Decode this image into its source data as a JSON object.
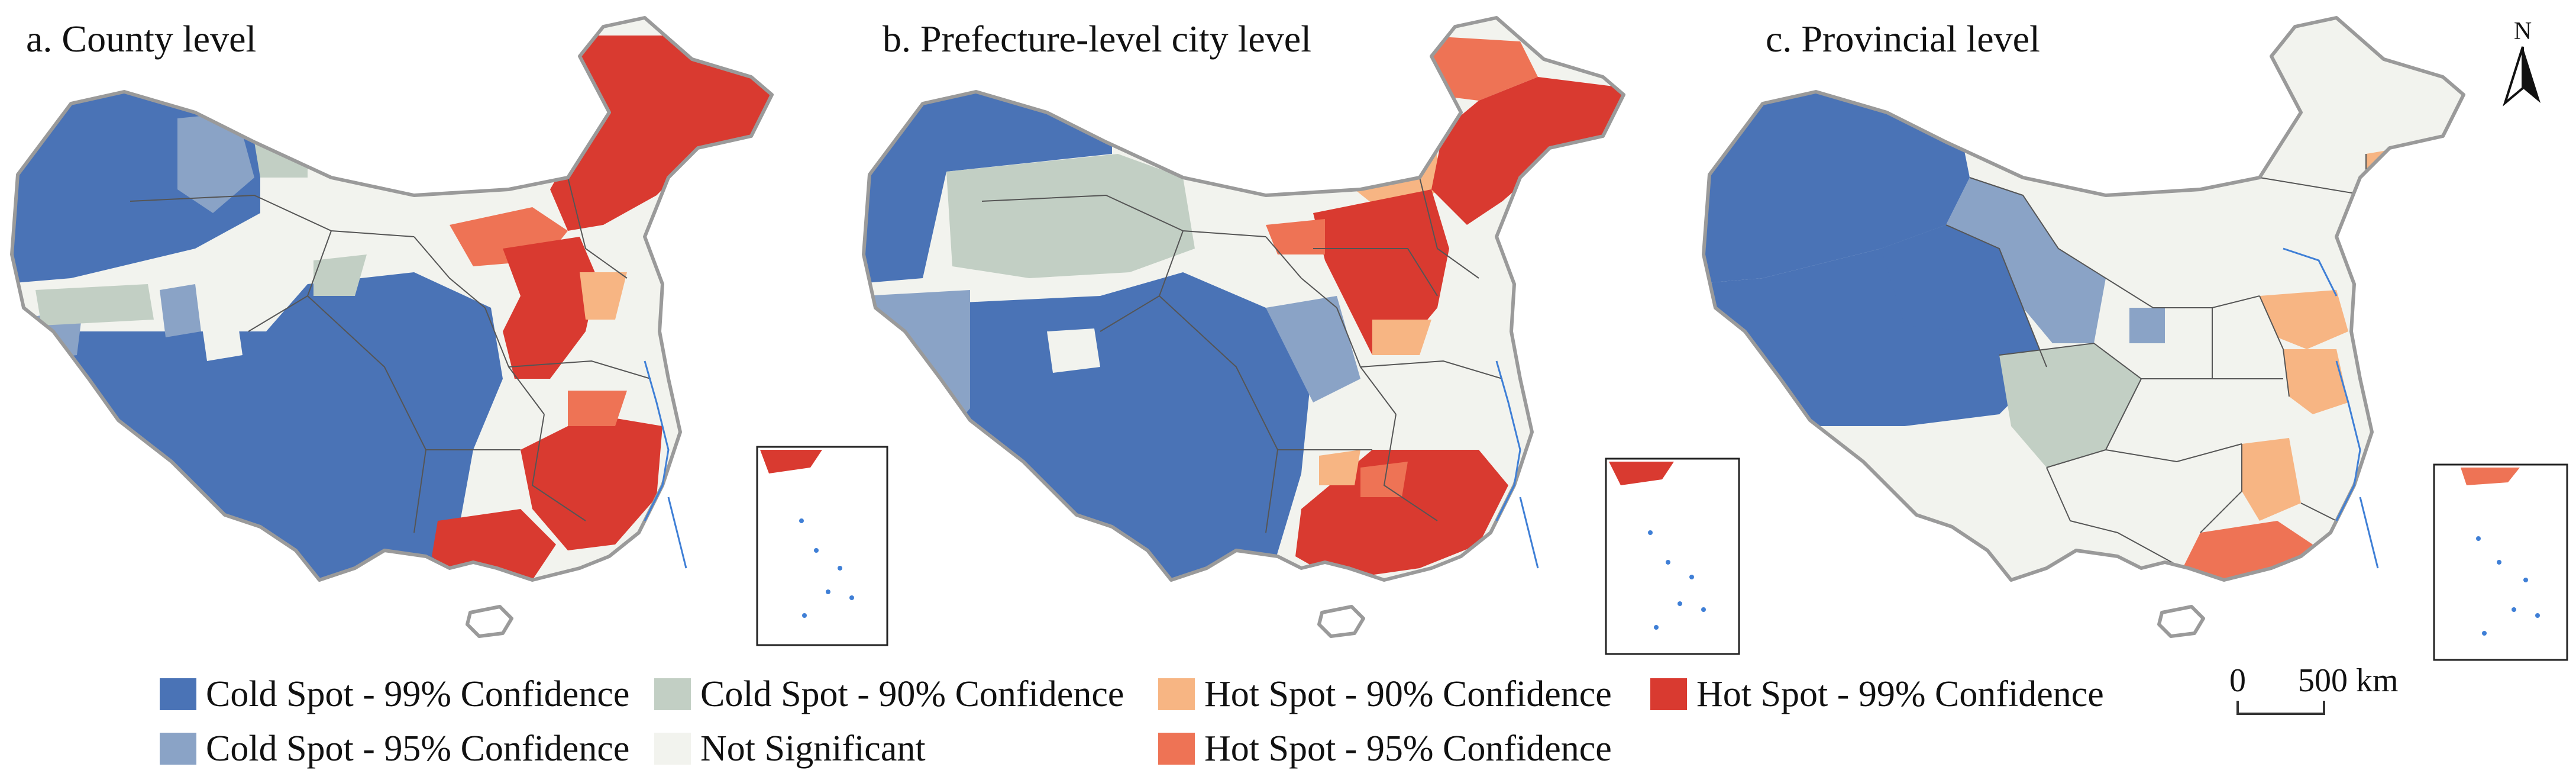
{
  "panels": [
    {
      "title": "a. County level"
    },
    {
      "title": "b. Prefecture-level city level"
    },
    {
      "title": "c. Provincial level"
    }
  ],
  "colors": {
    "cold99": "#4a73b6",
    "cold95": "#8aa3c6",
    "cold90": "#c2cfc4",
    "ns": "#f2f3ee",
    "hot90": "#f7b583",
    "hot95": "#ee7355",
    "hot99": "#d93a30",
    "border": "#555555",
    "outline": "#9a9a9a",
    "water": "#3f7fd6"
  },
  "legend": [
    {
      "label": "Cold Spot - 99% Confidence",
      "color": "#4a73b6"
    },
    {
      "label": "Cold Spot - 90% Confidence",
      "color": "#c2cfc4"
    },
    {
      "label": "Hot Spot - 90% Confidence",
      "color": "#f7b583"
    },
    {
      "label": "Hot Spot - 99% Confidence",
      "color": "#d93a30"
    },
    {
      "label": "Cold Spot - 95% Confidence",
      "color": "#8aa3c6"
    },
    {
      "label": "Not Significant",
      "color": "#f2f3ee"
    },
    {
      "label": "Hot Spot - 95% Confidence",
      "color": "#ee7355"
    }
  ],
  "north_arrow": {
    "label": "N",
    "icon": "north-arrow-icon"
  },
  "scale_bar": {
    "start": "0",
    "end_label": "500 km"
  }
}
